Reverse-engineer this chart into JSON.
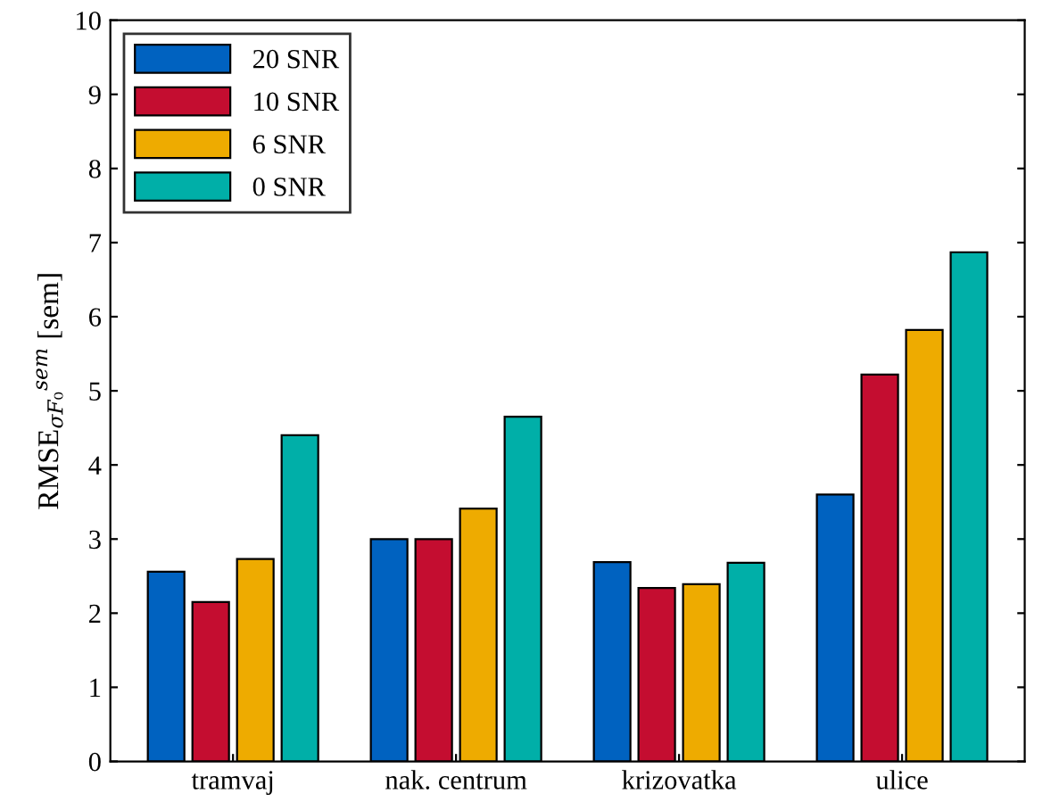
{
  "chart_data": {
    "type": "bar",
    "ylabel": "RMSE$_{σF₀}$$^{sem}$ [sem]",
    "categories": [
      "tramvaj",
      "nak. centrum",
      "krizovatka",
      "ulice"
    ],
    "series": [
      {
        "name": "20 SNR",
        "color": "#0062c0",
        "values": [
          2.56,
          3.0,
          2.69,
          3.6
        ]
      },
      {
        "name": "10 SNR",
        "color": "#c40d30",
        "values": [
          2.15,
          3.0,
          2.34,
          5.22
        ]
      },
      {
        "name": "6 SNR",
        "color": "#eeab00",
        "values": [
          2.73,
          3.41,
          2.39,
          5.82
        ]
      },
      {
        "name": "0 SNR",
        "color": "#00afa8",
        "values": [
          4.4,
          4.65,
          2.68,
          6.87
        ]
      }
    ],
    "ylim": [
      0,
      10
    ],
    "yticks": [
      0,
      1,
      2,
      3,
      4,
      5,
      6,
      7,
      8,
      9,
      10
    ],
    "legend": "top left",
    "grid": false
  }
}
